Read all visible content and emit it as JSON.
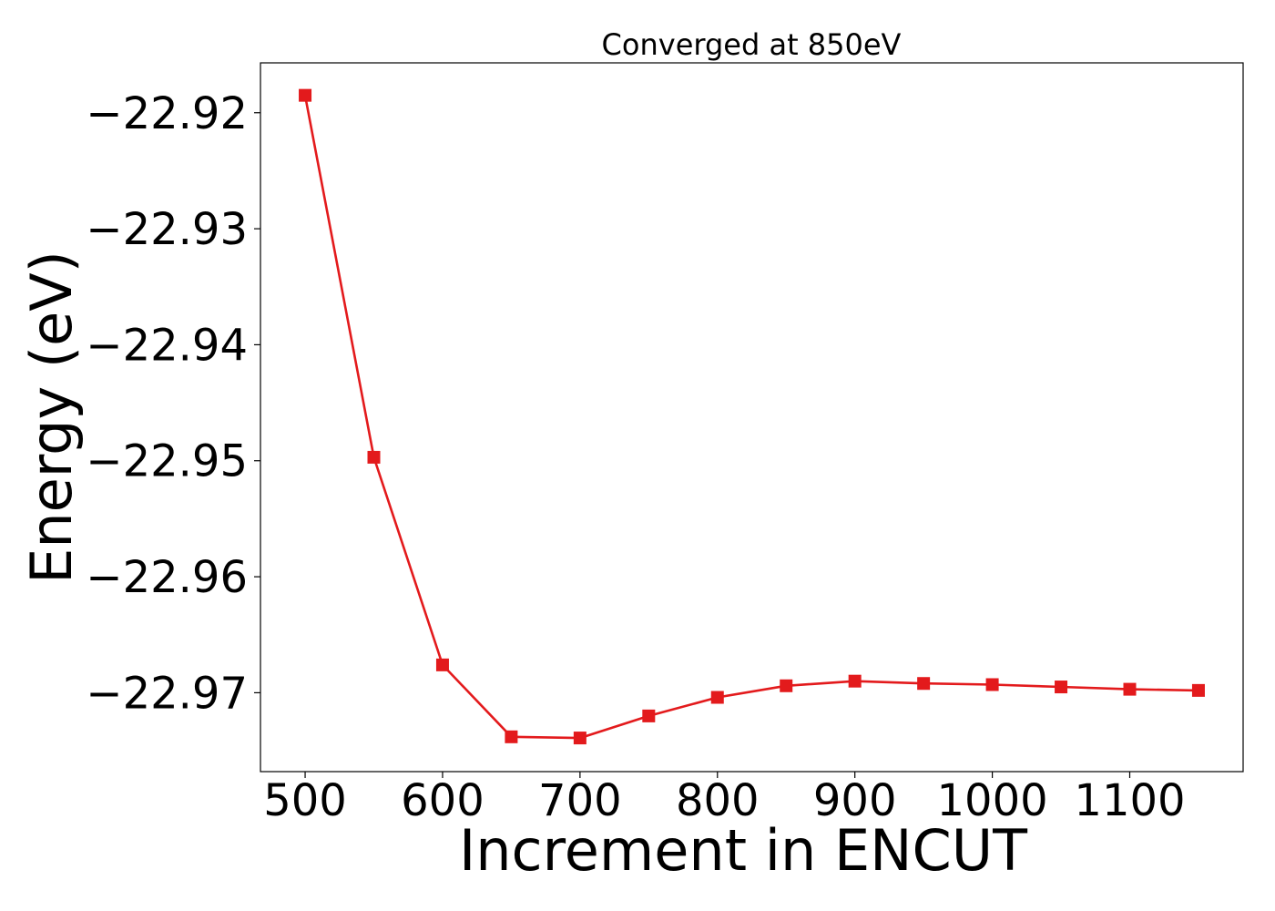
{
  "chart_data": {
    "type": "line",
    "title": "Converged at 850eV",
    "xlabel": "Increment in ENCUT",
    "ylabel": "Energy (eV)",
    "xlim": [
      467.5,
      1182.5
    ],
    "ylim": [
      -22.9768,
      -22.9157
    ],
    "grid": false,
    "legend": "none",
    "xticks": [
      500,
      600,
      700,
      800,
      900,
      1000,
      1100
    ],
    "xtick_labels": [
      "500",
      "600",
      "700",
      "800",
      "900",
      "1000",
      "1100"
    ],
    "yticks": [
      -22.92,
      -22.93,
      -22.94,
      -22.95,
      -22.96,
      -22.97
    ],
    "ytick_labels": [
      "−22.92",
      "−22.93",
      "−22.94",
      "−22.95",
      "−22.96",
      "−22.97"
    ],
    "series": [
      {
        "color": "#e31a1c",
        "marker": "square",
        "x": [
          500,
          550,
          600,
          650,
          700,
          750,
          800,
          850,
          900,
          950,
          1000,
          1050,
          1100,
          1150
        ],
        "y": [
          -22.9185,
          -22.9497,
          -22.9676,
          -22.9738,
          -22.9739,
          -22.972,
          -22.9704,
          -22.9694,
          -22.969,
          -22.9692,
          -22.9693,
          -22.9695,
          -22.9697,
          -22.9698
        ]
      }
    ]
  }
}
